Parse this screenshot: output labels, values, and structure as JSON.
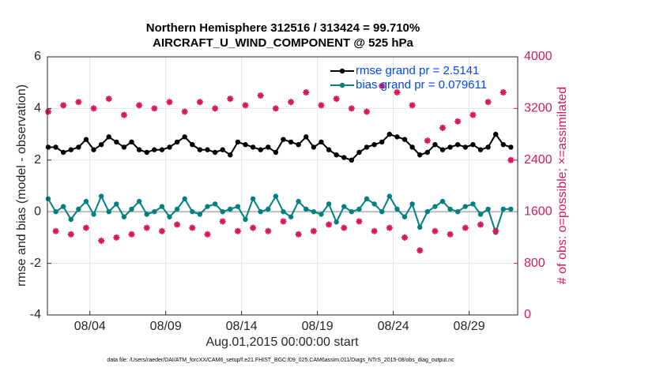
{
  "chart_data": {
    "type": "line",
    "title": "Northern Hemisphere 312516 / 313424 = 99.710%",
    "subtitle": "AIRCRAFT_U_WIND_COMPONENT @ 525 hPa",
    "ylabel": "rmse and bias (model - observation)",
    "y2label": "# of obs: o=possible; ×=assimilated",
    "xlabel": "Aug.01,2015 00:00:00 start",
    "footnote": "data file: /Users/raeder/DAI/ATM_forcXX/CAM6_setup/f.e21.FHIST_BGC.f09_025.CAM6assim.011/Diags_NTrS_2015-08/obs_diag_output.nc",
    "grid": true,
    "legend": "upper right",
    "xlim": [
      1.2,
      32.2
    ],
    "xticks": [
      {
        "value": 4,
        "label": "08/04"
      },
      {
        "value": 9,
        "label": "08/09"
      },
      {
        "value": 14,
        "label": "08/14"
      },
      {
        "value": 19,
        "label": "08/19"
      },
      {
        "value": 24,
        "label": "08/24"
      },
      {
        "value": 29,
        "label": "08/29"
      }
    ],
    "ylim": [
      -4,
      6
    ],
    "yticks": [
      -4,
      -2,
      0,
      2,
      4,
      6
    ],
    "y2lim": [
      0,
      4000
    ],
    "y2ticks": [
      0,
      800,
      1600,
      2400,
      3200,
      4000
    ],
    "y2color": "#d6185c",
    "x": [
      1.25,
      1.75,
      2.25,
      2.75,
      3.25,
      3.75,
      4.25,
      4.75,
      5.25,
      5.75,
      6.25,
      6.75,
      7.25,
      7.75,
      8.25,
      8.75,
      9.25,
      9.75,
      10.25,
      10.75,
      11.25,
      11.75,
      12.25,
      12.75,
      13.25,
      13.75,
      14.25,
      14.75,
      15.25,
      15.75,
      16.25,
      16.75,
      17.25,
      17.75,
      18.25,
      18.75,
      19.25,
      19.75,
      20.25,
      20.75,
      21.25,
      21.75,
      22.25,
      22.75,
      23.25,
      23.75,
      24.25,
      24.75,
      25.25,
      25.75,
      26.25,
      26.75,
      27.25,
      27.75,
      28.25,
      28.75,
      29.25,
      29.75,
      30.25,
      30.75,
      31.25,
      31.75
    ],
    "series": [
      {
        "name": "rmse grand pr = 2.5141",
        "color": "#000000",
        "marker": "circle",
        "values": [
          2.5,
          2.5,
          2.3,
          2.4,
          2.5,
          2.8,
          2.4,
          2.6,
          2.9,
          2.7,
          2.5,
          2.7,
          2.4,
          2.3,
          2.4,
          2.4,
          2.5,
          2.7,
          2.9,
          2.6,
          2.4,
          2.4,
          2.3,
          2.4,
          2.2,
          2.7,
          2.6,
          2.5,
          2.4,
          2.5,
          2.3,
          2.8,
          2.7,
          2.6,
          2.9,
          2.5,
          2.7,
          2.4,
          2.2,
          2.1,
          2.0,
          2.3,
          2.5,
          2.6,
          2.7,
          3.0,
          2.9,
          2.8,
          2.5,
          2.2,
          2.3,
          2.6,
          2.4,
          2.5,
          2.6,
          2.5,
          2.6,
          2.4,
          2.5,
          3.0,
          2.6,
          2.5
        ]
      },
      {
        "name": "bias grand pr = 0.079611",
        "color": "#008080",
        "marker": "circle",
        "values": [
          0.5,
          0,
          0.2,
          -0.3,
          0.1,
          0.4,
          -0.1,
          0.6,
          0,
          0.3,
          -0.2,
          0.1,
          0.4,
          -0.1,
          0,
          0.2,
          -0.2,
          0.1,
          0.5,
          0,
          -0.1,
          0.2,
          0.3,
          0,
          0.1,
          0.2,
          -0.3,
          0.5,
          0,
          0.1,
          0.6,
          0,
          -0.2,
          0.4,
          0.1,
          0,
          -0.1,
          0.3,
          -0.4,
          0.2,
          0,
          0.1,
          0.5,
          0.3,
          0,
          0.6,
          0.1,
          -0.2,
          0.3,
          -0.6,
          0,
          0.2,
          0.4,
          0.1,
          0,
          0.2,
          0.3,
          -0.1,
          0.1,
          -0.8,
          0.1,
          0.1
        ]
      },
      {
        "color": "#d6185c",
        "marker": "star",
        "axis": "y2",
        "values": [
          3150,
          1300,
          3250,
          1250,
          3300,
          1350,
          3200,
          1150,
          3350,
          1200,
          3100,
          1250,
          3250,
          1350,
          3200,
          1300,
          3300,
          1400,
          3150,
          1350,
          3300,
          1250,
          3200,
          1450,
          3350,
          1300,
          3250,
          1350,
          3400,
          1300,
          3200,
          1450,
          3300,
          1250,
          3450,
          1300,
          3250,
          1400,
          3350,
          1350,
          3200,
          1450,
          3150,
          1300,
          3550,
          1350,
          3450,
          1200,
          3250,
          1000,
          2700,
          1300,
          2900,
          1250,
          3000,
          1350,
          3100,
          1400,
          3300,
          1300,
          3450,
          2400
        ]
      }
    ]
  }
}
